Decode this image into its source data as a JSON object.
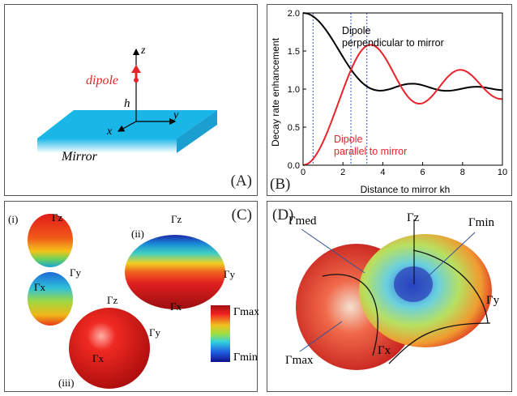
{
  "panelA": {
    "label": "(A)",
    "axis_z": "z",
    "axis_x": "x",
    "axis_y": "y",
    "height": "h",
    "dipole": "dipole",
    "mirror": "Mirror",
    "colors": {
      "mirror": "#1ab6e8",
      "dipole": "#e8232a"
    }
  },
  "panelB": {
    "label": "(B)",
    "curve_perp": [
      "Dipole",
      "perpendicular to mirror"
    ],
    "curve_par": [
      "Dipole",
      "parallel to mirror"
    ],
    "colors": {
      "perp": "#000000",
      "par": "#e8232a",
      "vlines": "#3355bb"
    }
  },
  "chart_data": {
    "type": "line",
    "xlabel": "Distance to mirror kh",
    "ylabel": "Decay rate enhancement",
    "xlim": [
      0,
      10
    ],
    "ylim": [
      0,
      2
    ],
    "xticks": [
      "0",
      "2",
      "4",
      "6",
      "8",
      "10"
    ],
    "yticks": [
      "0.0",
      "0.5",
      "1.0",
      "1.5",
      "2.0"
    ],
    "vlines_x": [
      0.5,
      2.4,
      3.2
    ],
    "series": [
      {
        "name": "Dipole perpendicular to mirror",
        "color": "#000000",
        "x": [
          0,
          0.25,
          0.5,
          0.75,
          1,
          1.25,
          1.5,
          1.75,
          2,
          2.25,
          2.5,
          2.75,
          3,
          3.25,
          3.5,
          3.75,
          4,
          4.25,
          4.5,
          4.75,
          5,
          5.25,
          5.5,
          5.75,
          6,
          6.25,
          6.5,
          6.75,
          7,
          7.25,
          7.5,
          7.75,
          8,
          8.25,
          8.5,
          8.75,
          9,
          9.25,
          9.5,
          9.75,
          10
        ],
        "y": [
          2.0,
          1.989,
          1.955,
          1.901,
          1.827,
          1.738,
          1.638,
          1.53,
          1.422,
          1.318,
          1.223,
          1.142,
          1.076,
          1.027,
          0.996,
          0.981,
          0.981,
          0.993,
          1.012,
          1.035,
          1.055,
          1.068,
          1.071,
          1.065,
          1.05,
          1.03,
          1.009,
          0.991,
          0.98,
          0.977,
          0.982,
          0.993,
          1.007,
          1.02,
          1.028,
          1.03,
          1.025,
          1.015,
          1.003,
          0.992,
          0.985
        ]
      },
      {
        "name": "Dipole parallel to mirror",
        "color": "#e8232a",
        "x": [
          0,
          0.25,
          0.5,
          0.75,
          1,
          1.25,
          1.5,
          1.75,
          2,
          2.25,
          2.5,
          2.75,
          3,
          3.25,
          3.5,
          3.75,
          4,
          4.25,
          4.5,
          4.75,
          5,
          5.25,
          5.5,
          5.75,
          6,
          6.25,
          6.5,
          6.75,
          7,
          7.25,
          7.5,
          7.75,
          8,
          8.25,
          8.5,
          8.75,
          9,
          9.25,
          9.5,
          9.75,
          10
        ],
        "y": [
          0.0,
          0.021,
          0.081,
          0.178,
          0.306,
          0.458,
          0.627,
          0.805,
          0.984,
          1.155,
          1.309,
          1.436,
          1.527,
          1.575,
          1.577,
          1.536,
          1.458,
          1.353,
          1.232,
          1.109,
          0.995,
          0.903,
          0.84,
          0.81,
          0.815,
          0.853,
          0.917,
          0.997,
          1.081,
          1.158,
          1.216,
          1.248,
          1.25,
          1.222,
          1.17,
          1.102,
          1.029,
          0.962,
          0.909,
          0.877,
          0.868
        ]
      }
    ]
  },
  "panelC": {
    "label": "(C)",
    "sub_i": "(i)",
    "sub_ii": "(ii)",
    "sub_iii": "(iii)",
    "gz": "Γz",
    "gx": "Γx",
    "gy": "Γy",
    "cb_max": "Γmax",
    "cb_min": "Γmin"
  },
  "panelD": {
    "label": "(D)",
    "gmed": "Γmed",
    "gz": "Γz",
    "gmin": "Γmin",
    "gy": "Γy",
    "gmax": "Γmax",
    "gx": "Γx"
  }
}
